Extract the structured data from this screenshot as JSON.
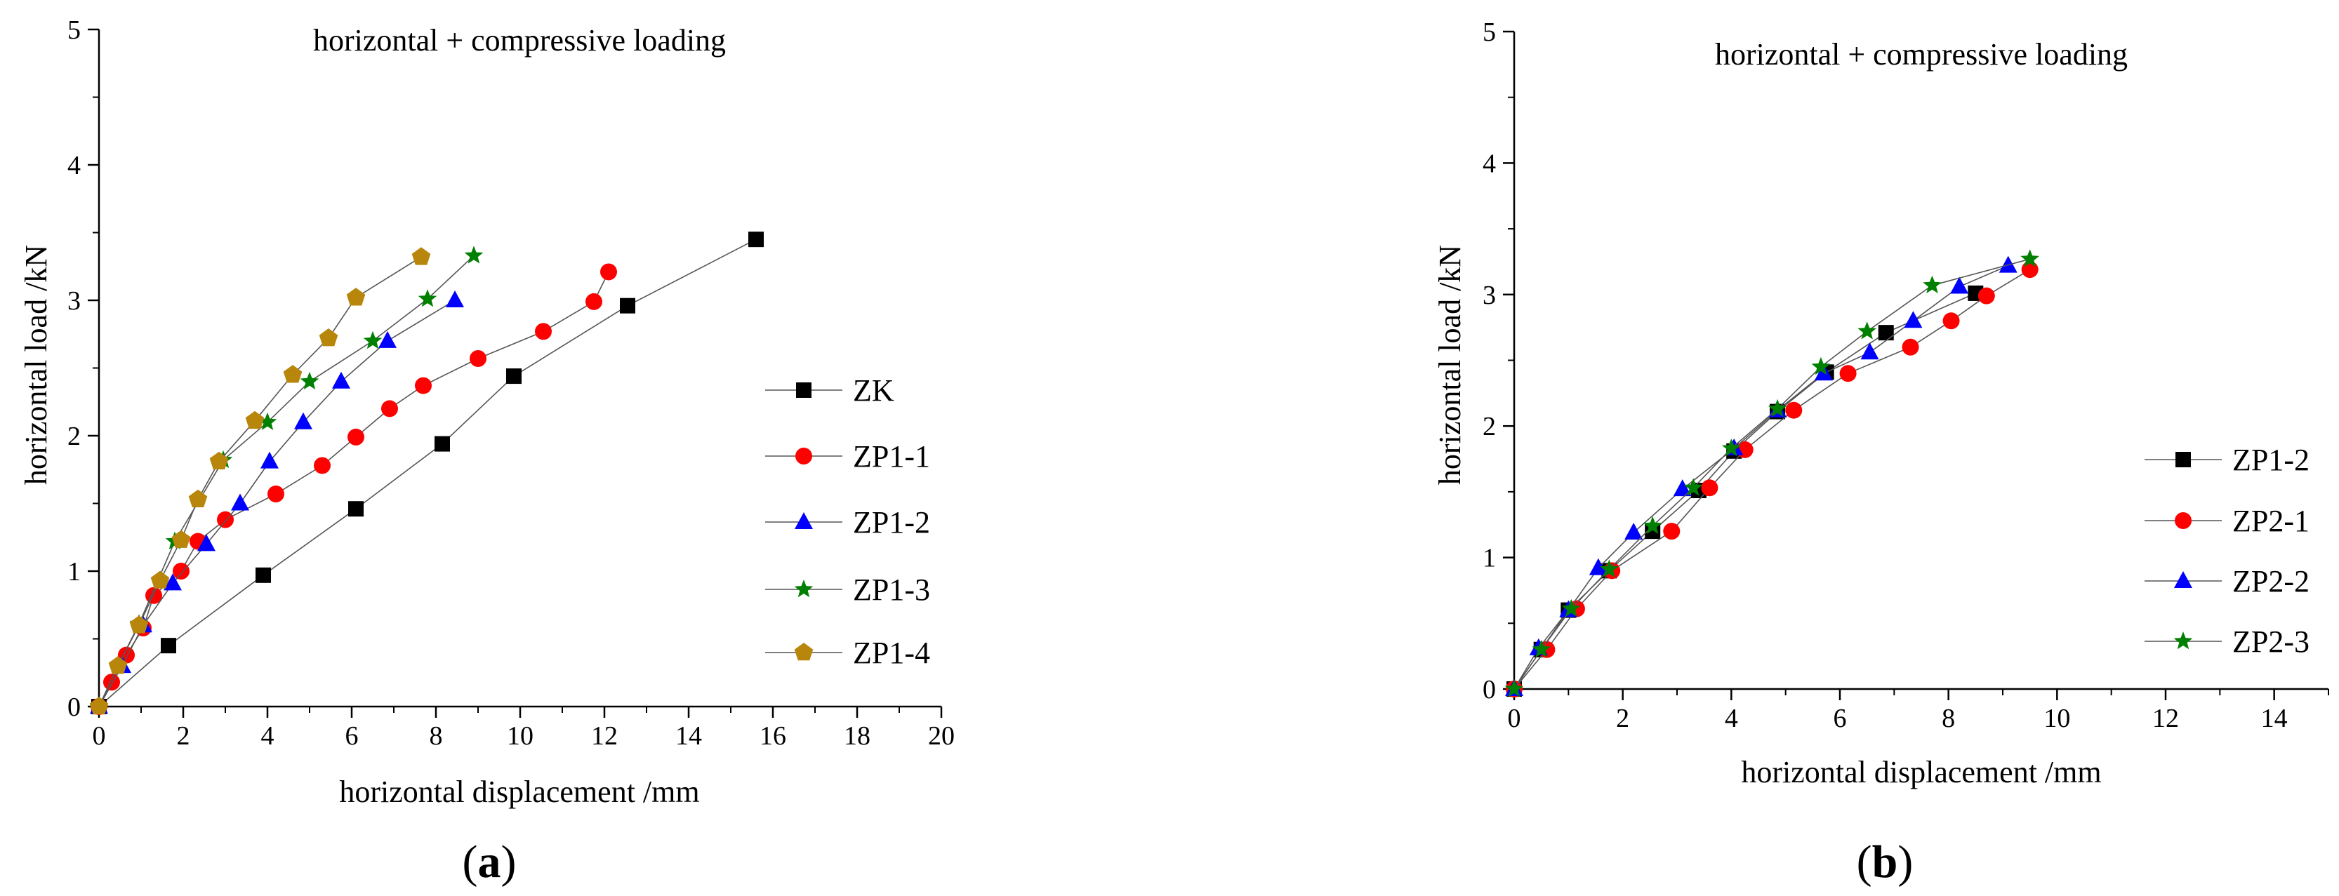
{
  "chart_data": [
    {
      "id": "a",
      "type": "line",
      "panel_label": "a",
      "title": "horizontal + compressive loading",
      "xlabel": "horizontal displacement /mm",
      "ylabel": "horizontal load /kN",
      "xlim": [
        0,
        20
      ],
      "ylim": [
        0,
        5
      ],
      "xticks": [
        0,
        2,
        4,
        6,
        8,
        10,
        12,
        14,
        16,
        18,
        20
      ],
      "yticks": [
        0,
        1,
        2,
        3,
        4,
        5
      ],
      "grid": false,
      "legend": "right",
      "series": [
        {
          "name": "ZK",
          "color": "#000000",
          "marker": "square",
          "x": [
            0,
            1.65,
            3.9,
            6.1,
            8.15,
            9.85,
            12.55,
            15.6
          ],
          "y": [
            0,
            0.45,
            0.97,
            1.46,
            1.94,
            2.44,
            2.96,
            3.45
          ]
        },
        {
          "name": "ZP1-1",
          "color": "#ff0000",
          "marker": "circle",
          "x": [
            0,
            0.3,
            0.65,
            1.05,
            1.3,
            1.95,
            2.35,
            3.0,
            4.2,
            5.3,
            6.1,
            6.9,
            7.7,
            9.0,
            10.55,
            11.75,
            12.1
          ],
          "y": [
            0,
            0.18,
            0.38,
            0.58,
            0.82,
            1.0,
            1.22,
            1.38,
            1.57,
            1.78,
            1.99,
            2.2,
            2.37,
            2.57,
            2.77,
            2.99,
            3.21
          ]
        },
        {
          "name": "ZP1-2",
          "color": "#0000ff",
          "marker": "triangle",
          "x": [
            0,
            0.55,
            1.05,
            1.75,
            2.55,
            3.35,
            4.05,
            4.85,
            5.75,
            6.85,
            8.45
          ],
          "y": [
            0,
            0.3,
            0.6,
            0.91,
            1.2,
            1.5,
            1.81,
            2.1,
            2.4,
            2.7,
            3.0
          ]
        },
        {
          "name": "ZP1-3",
          "color": "#008000",
          "marker": "star",
          "x": [
            0,
            0.45,
            0.95,
            1.8,
            2.95,
            4.0,
            5.0,
            6.5,
            7.8,
            8.9
          ],
          "y": [
            0,
            0.3,
            0.61,
            1.22,
            1.82,
            2.1,
            2.4,
            2.7,
            3.01,
            3.33
          ]
        },
        {
          "name": "ZP1-4",
          "color": "#b8860b",
          "marker": "pentagon",
          "x": [
            0,
            0.45,
            0.95,
            1.45,
            1.95,
            2.35,
            2.85,
            3.7,
            4.6,
            5.45,
            6.1,
            7.65
          ],
          "y": [
            0,
            0.3,
            0.6,
            0.93,
            1.23,
            1.53,
            1.81,
            2.11,
            2.45,
            2.72,
            3.02,
            3.32
          ]
        }
      ]
    },
    {
      "id": "b",
      "type": "line",
      "panel_label": "b",
      "title": "horizontal + compressive loading",
      "xlabel": "horizontal displacement /mm",
      "ylabel": "horizontal load /kN",
      "xlim": [
        0,
        15
      ],
      "ylim": [
        0,
        5
      ],
      "xticks": [
        0,
        2,
        4,
        6,
        8,
        10,
        12,
        14
      ],
      "yticks": [
        0,
        1,
        2,
        3,
        4,
        5
      ],
      "grid": false,
      "legend": "right",
      "series": [
        {
          "name": "ZP1-2",
          "color": "#000000",
          "marker": "square",
          "x": [
            0,
            0.5,
            1.0,
            1.75,
            2.55,
            3.4,
            4.05,
            4.85,
            5.75,
            6.85,
            8.5
          ],
          "y": [
            0,
            0.3,
            0.6,
            0.9,
            1.2,
            1.51,
            1.81,
            2.11,
            2.41,
            2.71,
            3.01
          ]
        },
        {
          "name": "ZP2-1",
          "color": "#ff0000",
          "marker": "circle",
          "x": [
            0,
            0.6,
            1.15,
            1.8,
            2.9,
            3.6,
            4.25,
            5.15,
            6.15,
            7.3,
            8.05,
            8.7,
            9.5
          ],
          "y": [
            0,
            0.3,
            0.61,
            0.9,
            1.2,
            1.53,
            1.82,
            2.12,
            2.4,
            2.6,
            2.8,
            2.99,
            3.19
          ]
        },
        {
          "name": "ZP2-2",
          "color": "#0000ff",
          "marker": "triangle",
          "x": [
            0,
            0.45,
            1.0,
            1.55,
            2.2,
            3.1,
            4.05,
            4.85,
            5.7,
            6.55,
            7.35,
            8.2,
            9.1
          ],
          "y": [
            0,
            0.31,
            0.6,
            0.92,
            1.19,
            1.52,
            1.83,
            2.12,
            2.4,
            2.56,
            2.8,
            3.06,
            3.22
          ]
        },
        {
          "name": "ZP2-3",
          "color": "#008000",
          "marker": "star",
          "x": [
            0,
            0.5,
            1.05,
            1.75,
            2.55,
            3.3,
            4.0,
            4.85,
            5.65,
            6.5,
            7.7,
            9.5
          ],
          "y": [
            0,
            0.3,
            0.61,
            0.91,
            1.24,
            1.53,
            1.83,
            2.13,
            2.45,
            2.72,
            3.07,
            3.27
          ]
        }
      ]
    }
  ]
}
